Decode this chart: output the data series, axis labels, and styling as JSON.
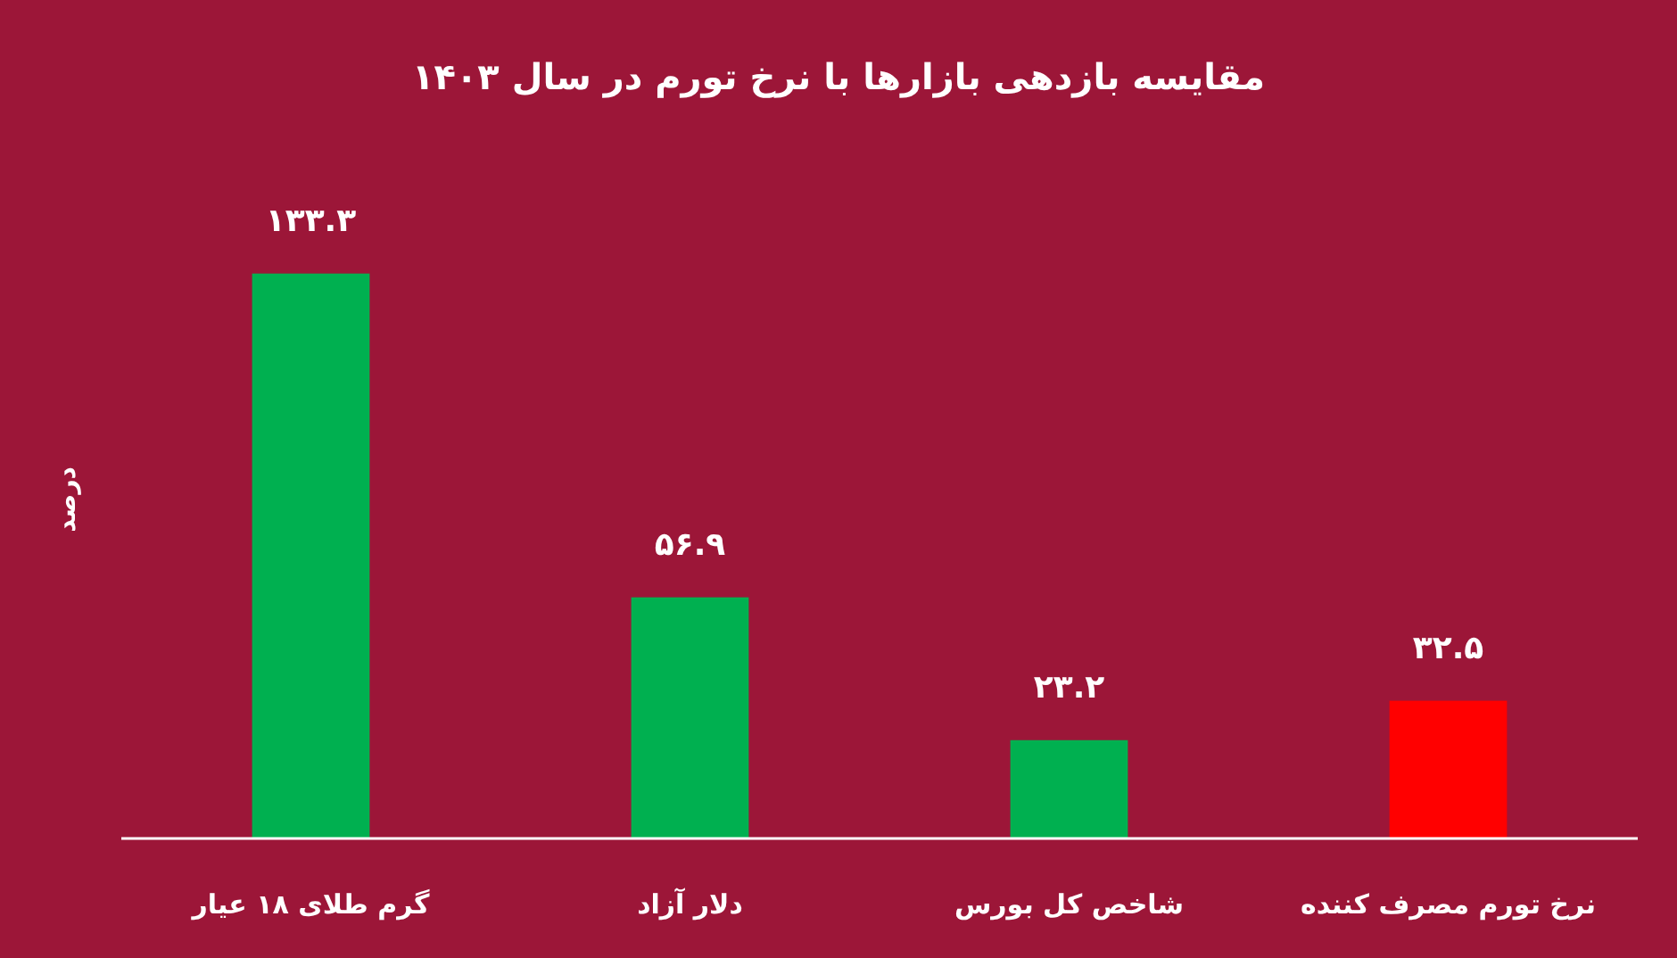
{
  "chart_data": {
    "type": "bar",
    "title": "مقایسه بازدهی بازارها با نرخ تورم در سال ۱۴۰۳",
    "ylabel": "درصد",
    "categories": [
      "گرم طلای ۱۸ عیار",
      "دلار آزاد",
      "شاخص کل بورس",
      "نرخ تورم مصرف کننده"
    ],
    "values": [
      133.3,
      56.9,
      23.2,
      32.5
    ],
    "colors": [
      "#00b050",
      "#00b050",
      "#00b050",
      "#ff0000"
    ],
    "value_labels": [
      "۱۳۳.۳",
      "۵۶.۹",
      "۲۳.۲",
      "۳۲.۵"
    ]
  }
}
